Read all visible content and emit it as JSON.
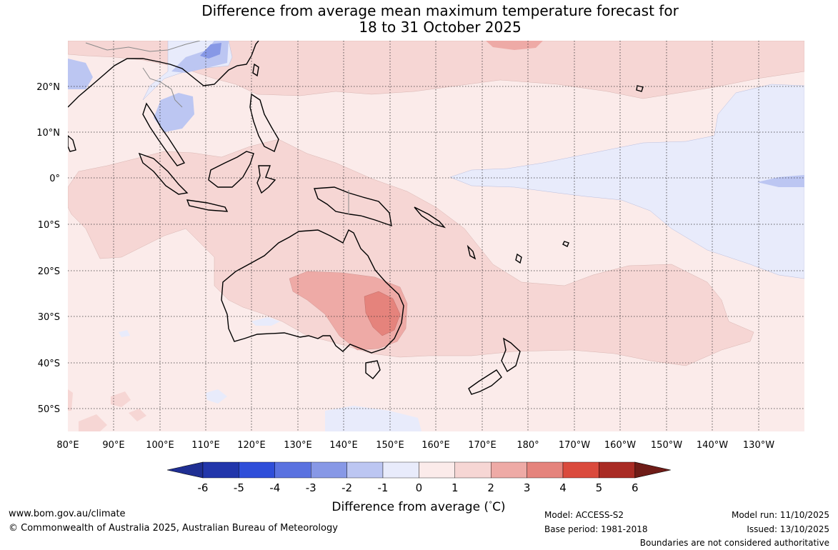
{
  "title": {
    "line1": "Difference from average mean maximum temperature forecast for",
    "line2": "18 to 31 October 2025"
  },
  "lon_labels": [
    "80°E",
    "90°E",
    "100°E",
    "110°E",
    "120°E",
    "130°E",
    "140°E",
    "150°E",
    "160°E",
    "170°E",
    "180°",
    "170°W",
    "160°W",
    "150°W",
    "140°W",
    "130°W"
  ],
  "lat_labels": [
    "20°N",
    "10°N",
    "0°",
    "10°S",
    "20°S",
    "30°S",
    "40°S",
    "50°S"
  ],
  "colorbar": {
    "tick_labels": [
      "-6",
      "-5",
      "-4",
      "-3",
      "-2",
      "-1",
      "0",
      "1",
      "2",
      "3",
      "4",
      "5",
      "6"
    ],
    "colors": [
      "#1f2f93",
      "#2236ab",
      "#2f4ed9",
      "#5a72e0",
      "#8798e6",
      "#bcc6f2",
      "#e8ebfb",
      "#fbebea",
      "#f6d6d4",
      "#eeaaa6",
      "#e5837c",
      "#da4a3d",
      "#a92b24",
      "#6f1c17"
    ],
    "label": "Difference from average (",
    "label_unit": "C)",
    "label_degree": "°"
  },
  "footer": {
    "url": "www.bom.gov.au/climate",
    "copyright": "© Commonwealth of Australia 2025, Australian Bureau of Meteorology",
    "model": "Model: ACCESS-S2",
    "base_period": "Base period: 1981-2018",
    "model_run": "Model run: 11/10/2025",
    "issued": "Issued: 13/10/2025",
    "disclaimer": "Boundaries are not considered authoritative"
  },
  "palette": {
    "anom_neg1": "#e8ebfb",
    "anom_neg2": "#bcc6f2",
    "anom_neg3": "#8798e6",
    "anom_0_1": "#fbebea",
    "anom_1_2": "#f6d6d4",
    "anom_2_3": "#eeaaa6",
    "anom_3_4": "#e5837c"
  }
}
